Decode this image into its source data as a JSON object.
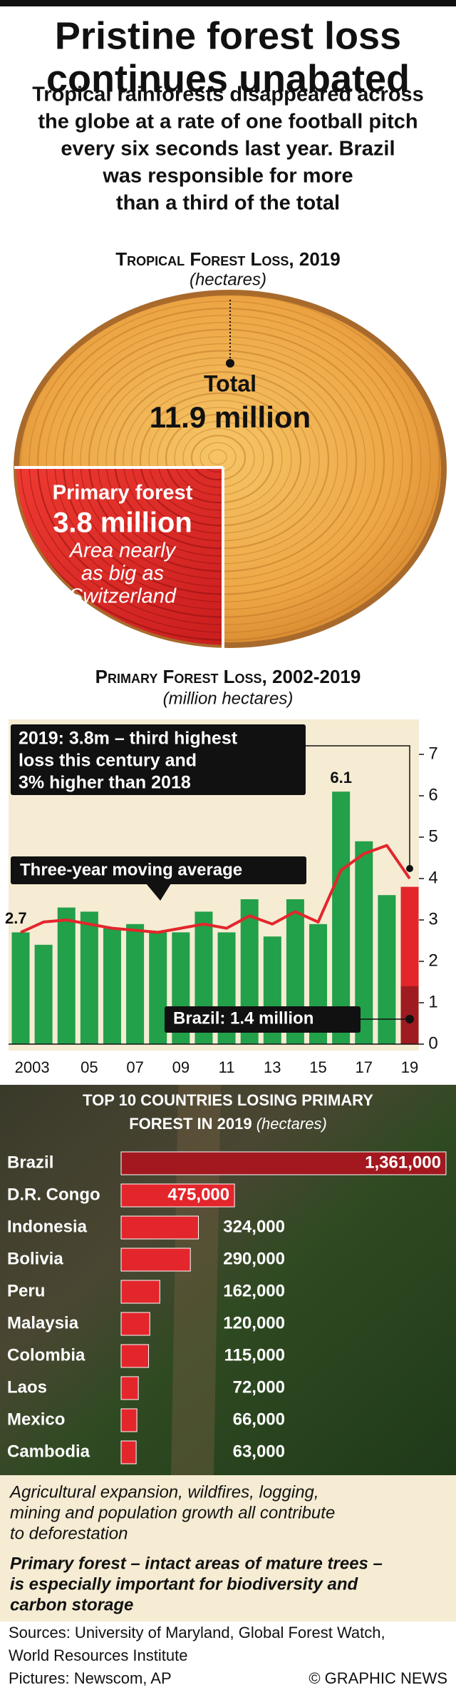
{
  "header": {
    "title_lines": [
      "Pristine forest loss",
      "continues unabated"
    ],
    "subtitle_lines": [
      "Tropical rainforests disappeared across",
      "the globe at a rate of one football pitch",
      "every six seconds last year. Brazil",
      "was responsible for more",
      "than a third of the total"
    ]
  },
  "forest_graphic": {
    "title": "Tropical Forest Loss, 2019",
    "unit": "(hectares)",
    "total_label": "Total",
    "total_value": "11.9 million",
    "primary_label": "Primary forest",
    "primary_value": "3.8 million",
    "primary_note": [
      "Area nearly",
      "as big as",
      "Switzerland"
    ]
  },
  "chart_data": [
    {
      "type": "bar",
      "title": "Primary Forest Loss, 2002-2019",
      "subtitle": "(million hectares)",
      "categories": [
        null,
        "2003",
        null,
        "05",
        null,
        "07",
        null,
        "09",
        null,
        "11",
        null,
        "13",
        null,
        "15",
        null,
        "17",
        null,
        "19"
      ],
      "values": [
        2.7,
        2.4,
        3.3,
        3.2,
        2.8,
        2.9,
        2.7,
        2.7,
        3.2,
        2.7,
        3.5,
        2.6,
        3.5,
        2.9,
        6.1,
        4.9,
        3.6,
        3.8
      ],
      "color": "#22a04a",
      "latest_color": "#e3262c",
      "moving_average": {
        "name": "Three-year moving average",
        "color": "#e3262c",
        "values": [
          2.7,
          2.95,
          3.0,
          2.9,
          2.8,
          2.75,
          2.7,
          2.8,
          2.9,
          2.8,
          3.1,
          2.9,
          3.2,
          2.95,
          4.2,
          4.6,
          4.8,
          4.0
        ]
      },
      "brazil": {
        "label": "Brazil: 1.4 million",
        "value": 1.4,
        "color": "#9e1b22"
      },
      "annotation": [
        "2019: 3.8m – third highest",
        "loss this century and",
        "3% higher than 2018"
      ],
      "ylim": [
        0,
        7
      ],
      "yticks": [
        0,
        1,
        2,
        3,
        4,
        5,
        6,
        7
      ],
      "y_axis_side": "right"
    },
    {
      "type": "hbar",
      "title": [
        "TOP 10 COUNTRIES LOSING PRIMARY",
        "FOREST IN 2019"
      ],
      "subtitle": "(hectares)",
      "categories": [
        "Brazil",
        "D.R. Congo",
        "Indonesia",
        "Bolivia",
        "Peru",
        "Malaysia",
        "Colombia",
        "Laos",
        "Mexico",
        "Cambodia"
      ],
      "values": [
        1361000,
        475000,
        324000,
        290000,
        162000,
        120000,
        115000,
        72000,
        66000,
        63000
      ],
      "value_labels": [
        "1,361,000",
        "475,000",
        "324,000",
        "290,000",
        "162,000",
        "120,000",
        "115,000",
        "72,000",
        "66,000",
        "63,000"
      ],
      "color": "#e3262c",
      "top_color": "#a3171e",
      "xlim": [
        0,
        1400000
      ]
    }
  ],
  "notes": {
    "context": [
      "Agricultural expansion, wildfires, logging,",
      "mining and population growth all contribute",
      "to deforestation"
    ],
    "definition": [
      "Primary forest – intact areas of mature trees –",
      "is especially important for biodiversity and",
      "carbon storage"
    ]
  },
  "footer": {
    "sources": [
      "Sources: University of Maryland, Global Forest Watch,",
      "World Resources Institute"
    ],
    "pictures": "Pictures: Newscom, AP",
    "credit": "© GRAPHIC NEWS"
  }
}
